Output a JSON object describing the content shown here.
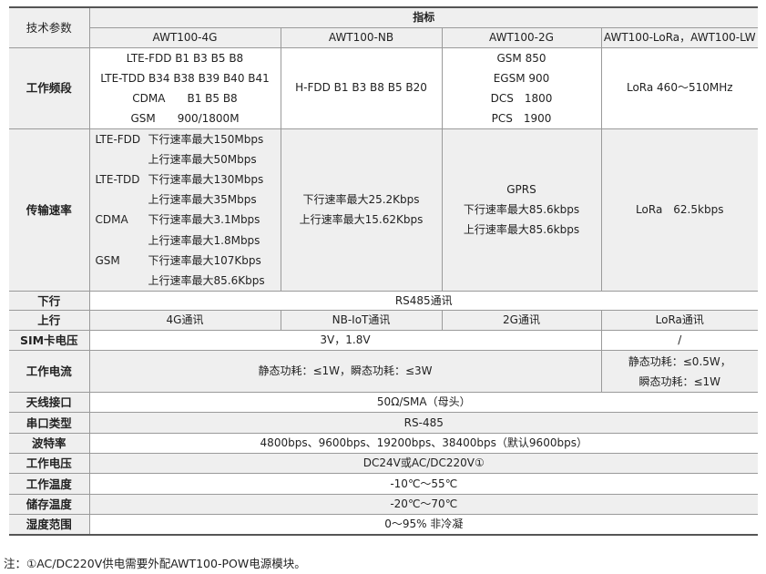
{
  "header": {
    "param": "技术参数",
    "spec": "指标",
    "models": [
      "AWT100-4G",
      "AWT100-NB",
      "AWT100-2G",
      "AWT100-LoRa，AWT100-LW"
    ]
  },
  "freq": {
    "label": "工作频段",
    "4g": [
      "LTE-FDD B1 B3 B5 B8",
      "LTE-TDD B34 B38 B39 B40 B41",
      "CDMA　　B1 B5 B8",
      "GSM　　900/1800M"
    ],
    "nb": "H-FDD B1 B3 B8 B5 B20",
    "2g": [
      "GSM 850",
      "EGSM 900",
      "DCS　1800",
      "PCS　1900"
    ],
    "lora": "LoRa 460～510MHz"
  },
  "rate": {
    "label": "传输速率",
    "4g": [
      [
        "LTE-FDD",
        "下行速率最大150Mbps"
      ],
      [
        "",
        "上行速率最大50Mbps"
      ],
      [
        "LTE-TDD",
        "下行速率最大130Mbps"
      ],
      [
        "",
        "上行速率最大35Mbps"
      ],
      [
        "CDMA",
        "下行速率最大3.1Mbps"
      ],
      [
        "",
        "上行速率最大1.8Mbps"
      ],
      [
        "GSM",
        "下行速率最大107Kbps"
      ],
      [
        "",
        "上行速率最大85.6Kbps"
      ]
    ],
    "nb": [
      "下行速率最大25.2Kbps",
      "上行速率最大15.62Kbps"
    ],
    "2g": [
      "GPRS",
      "下行速率最大85.6kbps",
      "上行速率最大85.6kbps"
    ],
    "lora": "LoRa　62.5kbps"
  },
  "rows": {
    "down": {
      "label": "下行",
      "value": "RS485通讯"
    },
    "up": {
      "label": "上行",
      "values": [
        "4G通讯",
        "NB-IoT通讯",
        "2G通讯",
        "LoRa通讯"
      ]
    },
    "sim": {
      "label": "SIM卡电压",
      "value": "3V，1.8V",
      "lora": "/"
    },
    "current": {
      "label": "工作电流",
      "value": "静态功耗：≤1W，瞬态功耗：≤3W",
      "lora": [
        "静态功耗：≤0.5W，",
        "瞬态功耗：≤1W"
      ]
    },
    "antenna": {
      "label": "天线接口",
      "value": "50Ω/SMA（母头）"
    },
    "serial": {
      "label": "串口类型",
      "value": "RS-485"
    },
    "baud": {
      "label": "波特率",
      "value": "4800bps、9600bps、19200bps、38400bps（默认9600bps）"
    },
    "voltage": {
      "label": "工作电压",
      "value": "DC24V或AC/DC220V①"
    },
    "temp": {
      "label": "工作温度",
      "value": "-10℃～55℃"
    },
    "storage": {
      "label": "储存温度",
      "value": "-20℃～70℃"
    },
    "humidity": {
      "label": "湿度范围",
      "value": "0～95% 非冷凝"
    }
  },
  "note": "注：①AC/DC220V供电需要外配AWT100-POW电源模块。"
}
